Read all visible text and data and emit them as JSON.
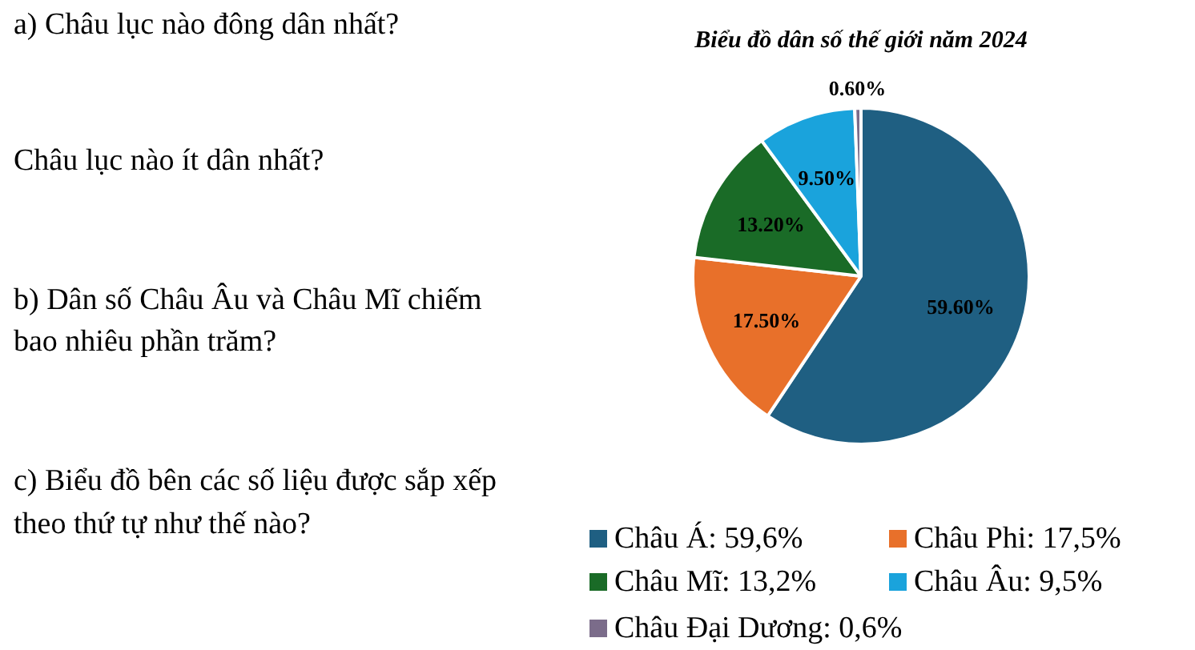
{
  "chart_data": {
    "type": "pie",
    "title": "Biểu đồ dân số thế giới năm 2024",
    "categories": [
      "Châu Á: 59,6%",
      "Châu Phi: 17,5%",
      "Châu Mĩ: 13,2%",
      "Châu Âu: 9,5%",
      "Châu Đại Dương: 0,6%"
    ],
    "values": [
      59.6,
      17.5,
      13.2,
      9.5,
      0.6
    ],
    "colors": [
      "#1f5f82",
      "#e8702a",
      "#1a6b27",
      "#1aa3dc",
      "#7b6c8a"
    ],
    "value_labels": [
      "59.60%",
      "17.50%",
      "13.20%",
      "9.50%",
      "0.60%"
    ],
    "legend": "bottom",
    "annotations": [
      "a) Châu lục nào đông dân nhất?",
      "Châu lục nào ít dân nhất?",
      "b) Dân số Châu Âu và Châu Mĩ chiếm",
      "bao nhiêu phần trăm?",
      "c) Biểu đồ bên các số liệu được sắp xếp",
      "theo thứ tự như thế nào?"
    ]
  }
}
